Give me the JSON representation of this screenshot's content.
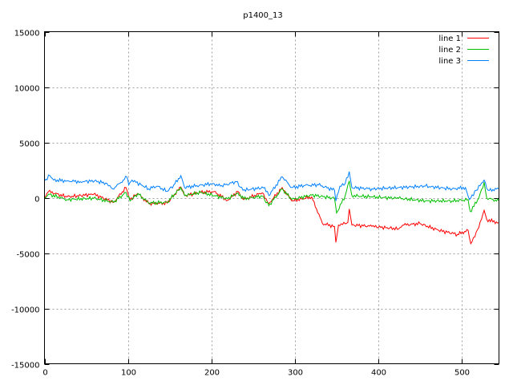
{
  "chart_data": {
    "type": "line",
    "title": "p1400_13",
    "xlabel": "",
    "ylabel": "",
    "xlim": [
      0,
      545
    ],
    "ylim": [
      -15000,
      15000
    ],
    "xticks": [
      0,
      100,
      200,
      300,
      400,
      500
    ],
    "yticks": [
      -15000,
      -10000,
      -5000,
      0,
      5000,
      10000,
      15000
    ],
    "grid": true,
    "legend_position": "top-right",
    "series": [
      {
        "name": "line 1",
        "color": "#ff0000",
        "points": [
          [
            0,
            -48
          ],
          [
            4.8,
            556
          ],
          [
            27,
            72
          ],
          [
            59,
            314
          ],
          [
            83,
            -411
          ],
          [
            97.7,
            918
          ],
          [
            102.6,
            -169
          ],
          [
            112,
            386
          ],
          [
            125,
            -531
          ],
          [
            147,
            -483
          ],
          [
            163.5,
            966
          ],
          [
            168,
            193
          ],
          [
            187.5,
            483
          ],
          [
            203.5,
            556
          ],
          [
            219.5,
            -242
          ],
          [
            232,
            556
          ],
          [
            239,
            -169
          ],
          [
            261,
            435
          ],
          [
            269,
            -531
          ],
          [
            285,
            918
          ],
          [
            296.5,
            -290
          ],
          [
            320.5,
            72
          ],
          [
            333.3,
            -2343
          ],
          [
            347.8,
            -2584
          ],
          [
            349.4,
            -4033
          ],
          [
            352.6,
            -2464
          ],
          [
            363.8,
            -2222
          ],
          [
            365.4,
            -1015
          ],
          [
            368.6,
            -2464
          ],
          [
            392.6,
            -2584
          ],
          [
            424.7,
            -2826
          ],
          [
            431,
            -2464
          ],
          [
            450.3,
            -2343
          ],
          [
            472.7,
            -2947
          ],
          [
            495.2,
            -3309
          ],
          [
            508,
            -2947
          ],
          [
            511.2,
            -4154
          ],
          [
            520.8,
            -2705
          ],
          [
            527.2,
            -1136
          ],
          [
            530.4,
            -1981
          ],
          [
            544.8,
            -2270
          ]
        ]
      },
      {
        "name": "line 2",
        "color": "#00c000",
        "points": [
          [
            0,
            -48
          ],
          [
            4.8,
            314
          ],
          [
            27,
            -169
          ],
          [
            59,
            -48
          ],
          [
            83,
            -411
          ],
          [
            97.7,
            483
          ],
          [
            102.6,
            -290
          ],
          [
            112,
            386
          ],
          [
            125,
            -483
          ],
          [
            147,
            -411
          ],
          [
            163.5,
            918
          ],
          [
            168,
            193
          ],
          [
            187.5,
            483
          ],
          [
            219.5,
            -97
          ],
          [
            232,
            435
          ],
          [
            239,
            -97
          ],
          [
            261,
            145
          ],
          [
            269,
            -725
          ],
          [
            285,
            797
          ],
          [
            296.5,
            -169
          ],
          [
            320.5,
            241
          ],
          [
            347.8,
            -48
          ],
          [
            350.3,
            -1377
          ],
          [
            360.6,
            193
          ],
          [
            365.4,
            1522
          ],
          [
            368.6,
            193
          ],
          [
            392.6,
            72
          ],
          [
            424.7,
            -48
          ],
          [
            456.7,
            -290
          ],
          [
            488.8,
            -290
          ],
          [
            508,
            -169
          ],
          [
            510.6,
            -1257
          ],
          [
            520.8,
            -48
          ],
          [
            527.2,
            1401
          ],
          [
            530.4,
            -48
          ],
          [
            544.8,
            -290
          ]
        ]
      },
      {
        "name": "line 3",
        "color": "#0080ff",
        "points": [
          [
            0,
            1522
          ],
          [
            6.4,
            2000
          ],
          [
            11,
            1594
          ],
          [
            27,
            1522
          ],
          [
            43,
            1449
          ],
          [
            60,
            1522
          ],
          [
            75,
            1280
          ],
          [
            81.7,
            797
          ],
          [
            90,
            1280
          ],
          [
            98.7,
            1884
          ],
          [
            101,
            1159
          ],
          [
            105,
            1594
          ],
          [
            125,
            797
          ],
          [
            135,
            1040
          ],
          [
            147,
            580
          ],
          [
            155,
            1159
          ],
          [
            163.5,
            2000
          ],
          [
            168,
            918
          ],
          [
            190,
            1159
          ],
          [
            202,
            1280
          ],
          [
            211,
            1040
          ],
          [
            230,
            1449
          ],
          [
            238,
            676
          ],
          [
            264,
            918
          ],
          [
            269,
            193
          ],
          [
            285,
            1884
          ],
          [
            296.5,
            918
          ],
          [
            312.5,
            1110
          ],
          [
            328.5,
            1159
          ],
          [
            347.8,
            676
          ],
          [
            349.4,
            -290
          ],
          [
            354.2,
            1040
          ],
          [
            360.6,
            1280
          ],
          [
            365.4,
            2363
          ],
          [
            368.6,
            918
          ],
          [
            392.6,
            797
          ],
          [
            424.7,
            918
          ],
          [
            456.7,
            1040
          ],
          [
            488.8,
            797
          ],
          [
            504.8,
            918
          ],
          [
            509.6,
            -169
          ],
          [
            517.6,
            676
          ],
          [
            527.2,
            1594
          ],
          [
            532,
            676
          ],
          [
            544.8,
            797
          ]
        ]
      }
    ]
  }
}
